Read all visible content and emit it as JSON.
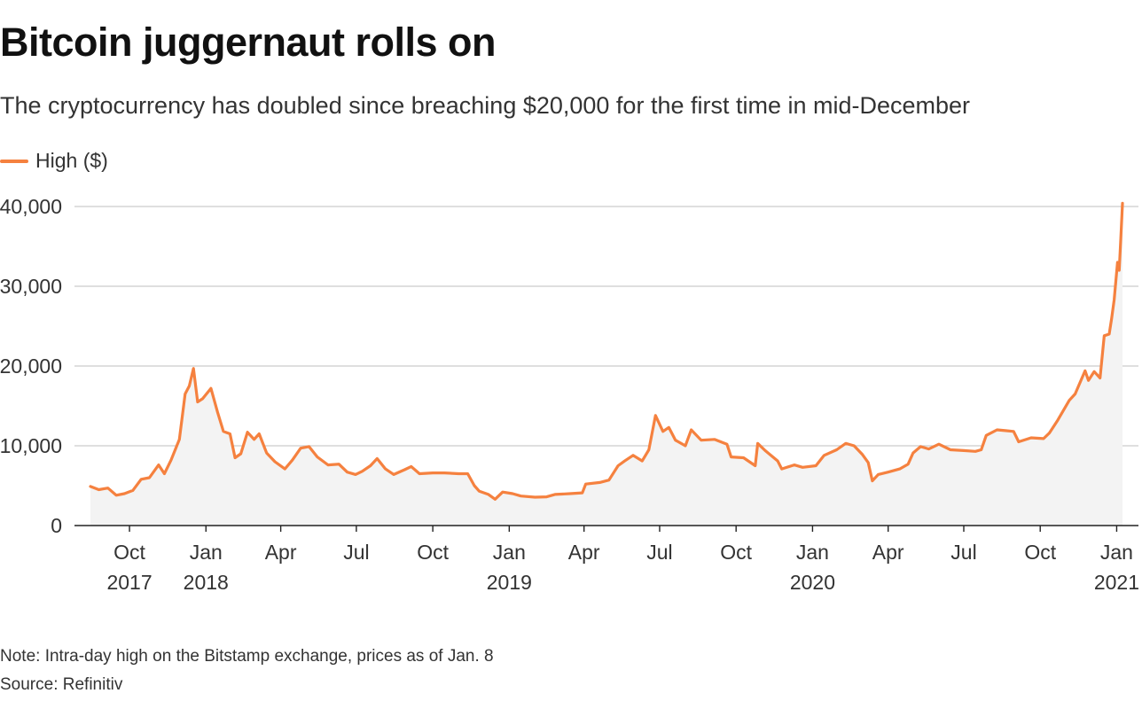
{
  "title": "Bitcoin juggernaut rolls on",
  "subtitle": "The cryptocurrency has doubled since breaching $20,000 for the first time in mid-December",
  "note": "Note: Intra-day high on the Bitstamp exchange, prices as of Jan. 8",
  "source": "Source: Refinitiv",
  "colors": {
    "line": "#f5813f",
    "area": "#f3f3f3",
    "grid": "#cccccc",
    "axis": "#222222"
  },
  "chart_data": {
    "type": "line",
    "title": "Bitcoin juggernaut rolls on",
    "ylim": [
      0,
      40000
    ],
    "xlim": [
      "2017-08-15",
      "2021-01-08"
    ],
    "grid": true,
    "legend_position": "top-left",
    "y_ticks": [
      {
        "value": 0,
        "label": "0"
      },
      {
        "value": 10000,
        "label": "10,000"
      },
      {
        "value": 20000,
        "label": "20,000"
      },
      {
        "value": 30000,
        "label": "30,000"
      },
      {
        "value": 40000,
        "label": "40,000"
      }
    ],
    "x_ticks": [
      {
        "date": "2017-10-01",
        "label": "Oct",
        "year": "2017"
      },
      {
        "date": "2018-01-01",
        "label": "Jan",
        "year": "2018"
      },
      {
        "date": "2018-04-01",
        "label": "Apr",
        "year": ""
      },
      {
        "date": "2018-07-01",
        "label": "Jul",
        "year": ""
      },
      {
        "date": "2018-10-01",
        "label": "Oct",
        "year": ""
      },
      {
        "date": "2019-01-01",
        "label": "Jan",
        "year": "2019"
      },
      {
        "date": "2019-04-01",
        "label": "Apr",
        "year": ""
      },
      {
        "date": "2019-07-01",
        "label": "Jul",
        "year": ""
      },
      {
        "date": "2019-10-01",
        "label": "Oct",
        "year": ""
      },
      {
        "date": "2020-01-01",
        "label": "Jan",
        "year": "2020"
      },
      {
        "date": "2020-04-01",
        "label": "Apr",
        "year": ""
      },
      {
        "date": "2020-07-01",
        "label": "Jul",
        "year": ""
      },
      {
        "date": "2020-10-01",
        "label": "Oct",
        "year": ""
      },
      {
        "date": "2021-01-01",
        "label": "Jan",
        "year": "2021"
      }
    ],
    "series": [
      {
        "name": "High ($)",
        "points": [
          [
            "2017-08-15",
            4900
          ],
          [
            "2017-08-25",
            4500
          ],
          [
            "2017-09-05",
            4700
          ],
          [
            "2017-09-15",
            3800
          ],
          [
            "2017-09-25",
            4000
          ],
          [
            "2017-10-05",
            4400
          ],
          [
            "2017-10-15",
            5800
          ],
          [
            "2017-10-25",
            6000
          ],
          [
            "2017-11-05",
            7600
          ],
          [
            "2017-11-12",
            6500
          ],
          [
            "2017-11-20",
            8200
          ],
          [
            "2017-11-30",
            10800
          ],
          [
            "2017-12-07",
            16500
          ],
          [
            "2017-12-12",
            17500
          ],
          [
            "2017-12-17",
            19700
          ],
          [
            "2017-12-22",
            15500
          ],
          [
            "2017-12-28",
            15900
          ],
          [
            "2018-01-07",
            17200
          ],
          [
            "2018-01-15",
            14200
          ],
          [
            "2018-01-22",
            11800
          ],
          [
            "2018-01-30",
            11500
          ],
          [
            "2018-02-05",
            8500
          ],
          [
            "2018-02-12",
            9000
          ],
          [
            "2018-02-20",
            11700
          ],
          [
            "2018-02-28",
            10800
          ],
          [
            "2018-03-06",
            11500
          ],
          [
            "2018-03-15",
            9100
          ],
          [
            "2018-03-25",
            8000
          ],
          [
            "2018-04-06",
            7100
          ],
          [
            "2018-04-15",
            8200
          ],
          [
            "2018-04-25",
            9700
          ],
          [
            "2018-05-05",
            9900
          ],
          [
            "2018-05-15",
            8600
          ],
          [
            "2018-05-28",
            7600
          ],
          [
            "2018-06-10",
            7700
          ],
          [
            "2018-06-20",
            6700
          ],
          [
            "2018-06-30",
            6400
          ],
          [
            "2018-07-08",
            6800
          ],
          [
            "2018-07-18",
            7500
          ],
          [
            "2018-07-26",
            8400
          ],
          [
            "2018-08-05",
            7100
          ],
          [
            "2018-08-15",
            6400
          ],
          [
            "2018-08-28",
            7000
          ],
          [
            "2018-09-05",
            7400
          ],
          [
            "2018-09-15",
            6500
          ],
          [
            "2018-10-01",
            6600
          ],
          [
            "2018-10-15",
            6600
          ],
          [
            "2018-11-01",
            6500
          ],
          [
            "2018-11-12",
            6500
          ],
          [
            "2018-11-20",
            5000
          ],
          [
            "2018-11-26",
            4300
          ],
          [
            "2018-12-07",
            3900
          ],
          [
            "2018-12-15",
            3300
          ],
          [
            "2018-12-24",
            4200
          ],
          [
            "2019-01-05",
            4000
          ],
          [
            "2019-01-15",
            3700
          ],
          [
            "2019-02-01",
            3550
          ],
          [
            "2019-02-15",
            3600
          ],
          [
            "2019-02-25",
            3900
          ],
          [
            "2019-03-15",
            4000
          ],
          [
            "2019-03-30",
            4100
          ],
          [
            "2019-04-03",
            5200
          ],
          [
            "2019-04-20",
            5400
          ],
          [
            "2019-05-01",
            5700
          ],
          [
            "2019-05-12",
            7500
          ],
          [
            "2019-05-20",
            8100
          ],
          [
            "2019-05-30",
            8800
          ],
          [
            "2019-06-10",
            8100
          ],
          [
            "2019-06-18",
            9500
          ],
          [
            "2019-06-26",
            13800
          ],
          [
            "2019-07-05",
            11800
          ],
          [
            "2019-07-12",
            12300
          ],
          [
            "2019-07-20",
            10700
          ],
          [
            "2019-08-01",
            10000
          ],
          [
            "2019-08-08",
            12000
          ],
          [
            "2019-08-20",
            10700
          ],
          [
            "2019-09-05",
            10800
          ],
          [
            "2019-09-20",
            10200
          ],
          [
            "2019-09-25",
            8600
          ],
          [
            "2019-10-10",
            8500
          ],
          [
            "2019-10-24",
            7500
          ],
          [
            "2019-10-27",
            10300
          ],
          [
            "2019-11-05",
            9400
          ],
          [
            "2019-11-20",
            8100
          ],
          [
            "2019-11-25",
            7100
          ],
          [
            "2019-12-10",
            7600
          ],
          [
            "2019-12-20",
            7300
          ],
          [
            "2020-01-05",
            7500
          ],
          [
            "2020-01-15",
            8800
          ],
          [
            "2020-01-30",
            9500
          ],
          [
            "2020-02-10",
            10300
          ],
          [
            "2020-02-20",
            10000
          ],
          [
            "2020-03-01",
            8900
          ],
          [
            "2020-03-08",
            7900
          ],
          [
            "2020-03-13",
            5600
          ],
          [
            "2020-03-20",
            6400
          ],
          [
            "2020-04-01",
            6700
          ],
          [
            "2020-04-15",
            7100
          ],
          [
            "2020-04-25",
            7700
          ],
          [
            "2020-05-01",
            9100
          ],
          [
            "2020-05-10",
            9900
          ],
          [
            "2020-05-20",
            9600
          ],
          [
            "2020-06-01",
            10200
          ],
          [
            "2020-06-15",
            9500
          ],
          [
            "2020-07-01",
            9400
          ],
          [
            "2020-07-15",
            9300
          ],
          [
            "2020-07-22",
            9500
          ],
          [
            "2020-07-28",
            11300
          ],
          [
            "2020-08-10",
            12000
          ],
          [
            "2020-08-20",
            11900
          ],
          [
            "2020-08-30",
            11800
          ],
          [
            "2020-09-05",
            10500
          ],
          [
            "2020-09-20",
            11000
          ],
          [
            "2020-10-05",
            10900
          ],
          [
            "2020-10-12",
            11600
          ],
          [
            "2020-10-22",
            13200
          ],
          [
            "2020-11-05",
            15700
          ],
          [
            "2020-11-12",
            16500
          ],
          [
            "2020-11-24",
            19400
          ],
          [
            "2020-11-28",
            18200
          ],
          [
            "2020-12-05",
            19300
          ],
          [
            "2020-12-12",
            18500
          ],
          [
            "2020-12-17",
            23800
          ],
          [
            "2020-12-23",
            24000
          ],
          [
            "2020-12-26",
            26000
          ],
          [
            "2020-12-29",
            28300
          ],
          [
            "2021-01-02",
            33000
          ],
          [
            "2021-01-04",
            32000
          ],
          [
            "2021-01-06",
            36000
          ],
          [
            "2021-01-08",
            40400
          ]
        ]
      }
    ]
  }
}
